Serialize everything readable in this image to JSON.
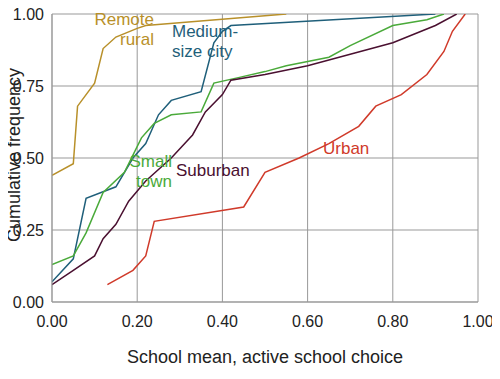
{
  "chart_data": {
    "type": "line",
    "x_label": "School mean, active school choice",
    "y_label": "Cumulative frequency",
    "xlim": [
      0,
      1
    ],
    "ylim": [
      0,
      1
    ],
    "xticks": [
      {
        "value": 0,
        "label": "0.00"
      },
      {
        "value": 0.2,
        "label": "0.20"
      },
      {
        "value": 0.4,
        "label": "0.40"
      },
      {
        "value": 0.6,
        "label": "0.60"
      },
      {
        "value": 0.8,
        "label": "0.80"
      },
      {
        "value": 1,
        "label": "1.00"
      }
    ],
    "yticks": [
      {
        "value": 0,
        "label": "0.00"
      },
      {
        "value": 0.25,
        "label": "0.25"
      },
      {
        "value": 0.5,
        "label": "0.50"
      },
      {
        "value": 0.75,
        "label": "0.75"
      },
      {
        "value": 1,
        "label": "1.00"
      }
    ],
    "grid": true,
    "series": [
      {
        "name": "Remote rural",
        "color": "#b8902a",
        "x": [
          0,
          0.05,
          0.06,
          0.1,
          0.12,
          0.15,
          0.2,
          0.22,
          0.55
        ],
        "values": [
          0.44,
          0.48,
          0.68,
          0.76,
          0.88,
          0.92,
          0.95,
          0.96,
          1.0
        ]
      },
      {
        "name": "Medium-size city",
        "color": "#1f5f7a",
        "x": [
          0,
          0.05,
          0.08,
          0.15,
          0.19,
          0.22,
          0.25,
          0.28,
          0.35,
          0.38,
          0.4,
          0.42,
          0.9
        ],
        "values": [
          0.07,
          0.15,
          0.36,
          0.4,
          0.5,
          0.55,
          0.65,
          0.7,
          0.73,
          0.9,
          0.94,
          0.96,
          1.0
        ]
      },
      {
        "name": "Small town",
        "color": "#4aaa3a",
        "x": [
          0,
          0.05,
          0.08,
          0.12,
          0.17,
          0.19,
          0.21,
          0.24,
          0.28,
          0.35,
          0.38,
          0.44,
          0.5,
          0.55,
          0.65,
          0.7,
          0.8,
          0.88,
          0.92
        ],
        "values": [
          0.13,
          0.16,
          0.24,
          0.38,
          0.45,
          0.51,
          0.57,
          0.62,
          0.65,
          0.66,
          0.76,
          0.78,
          0.8,
          0.82,
          0.85,
          0.89,
          0.96,
          0.98,
          1.0
        ]
      },
      {
        "name": "Suburban",
        "color": "#4a1030",
        "x": [
          0,
          0.05,
          0.1,
          0.12,
          0.15,
          0.18,
          0.22,
          0.28,
          0.33,
          0.36,
          0.4,
          0.42,
          0.5,
          0.6,
          0.7,
          0.8,
          0.9,
          0.95
        ],
        "values": [
          0.06,
          0.11,
          0.16,
          0.22,
          0.27,
          0.35,
          0.42,
          0.5,
          0.58,
          0.66,
          0.72,
          0.77,
          0.79,
          0.82,
          0.86,
          0.9,
          0.96,
          1.0
        ]
      },
      {
        "name": "Urban",
        "color": "#d03a2a",
        "x": [
          0.13,
          0.19,
          0.22,
          0.24,
          0.45,
          0.5,
          0.58,
          0.65,
          0.72,
          0.76,
          0.82,
          0.88,
          0.92,
          0.94,
          0.97
        ],
        "values": [
          0.06,
          0.11,
          0.16,
          0.28,
          0.33,
          0.45,
          0.5,
          0.55,
          0.61,
          0.68,
          0.72,
          0.79,
          0.87,
          0.94,
          1.0
        ]
      }
    ]
  }
}
